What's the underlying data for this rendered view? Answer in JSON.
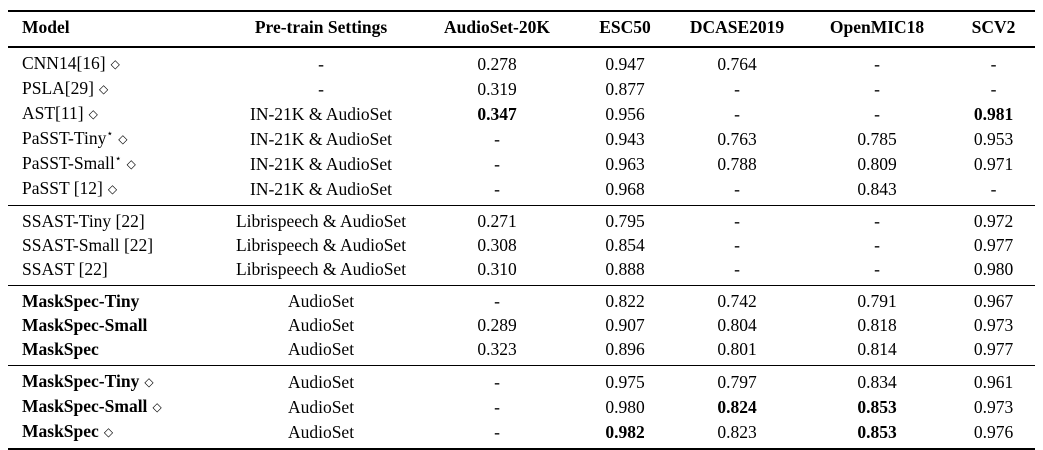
{
  "table": {
    "columns": [
      "Model",
      "Pre-train Settings",
      "AudioSet-20K",
      "ESC50",
      "DCASE2019",
      "OpenMIC18",
      "SCV2"
    ],
    "symbols": {
      "diamond": "◇",
      "star": "⋆"
    },
    "sections": [
      {
        "rows": [
          {
            "model": {
              "text": "CNN14[16]",
              "star": false,
              "diamond": true,
              "bold": false
            },
            "cells": [
              {
                "t": "-",
                "b": false
              },
              {
                "t": "0.278",
                "b": false
              },
              {
                "t": "0.947",
                "b": false
              },
              {
                "t": "0.764",
                "b": false
              },
              {
                "t": "-",
                "b": false
              },
              {
                "t": "-",
                "b": false
              }
            ]
          },
          {
            "model": {
              "text": "PSLA[29]",
              "star": false,
              "diamond": true,
              "bold": false
            },
            "cells": [
              {
                "t": "-",
                "b": false
              },
              {
                "t": "0.319",
                "b": false
              },
              {
                "t": "0.877",
                "b": false
              },
              {
                "t": "-",
                "b": false
              },
              {
                "t": "-",
                "b": false
              },
              {
                "t": "-",
                "b": false
              }
            ]
          },
          {
            "model": {
              "text": "AST[11]",
              "star": false,
              "diamond": true,
              "bold": false
            },
            "cells": [
              {
                "t": "IN-21K & AudioSet",
                "b": false
              },
              {
                "t": "0.347",
                "b": true
              },
              {
                "t": "0.956",
                "b": false
              },
              {
                "t": "-",
                "b": false
              },
              {
                "t": "-",
                "b": false
              },
              {
                "t": "0.981",
                "b": true
              }
            ]
          },
          {
            "model": {
              "text": "PaSST-Tiny",
              "star": true,
              "diamond": true,
              "bold": false
            },
            "cells": [
              {
                "t": "IN-21K & AudioSet",
                "b": false
              },
              {
                "t": "-",
                "b": false
              },
              {
                "t": "0.943",
                "b": false
              },
              {
                "t": "0.763",
                "b": false
              },
              {
                "t": "0.785",
                "b": false
              },
              {
                "t": "0.953",
                "b": false
              }
            ]
          },
          {
            "model": {
              "text": "PaSST-Small",
              "star": true,
              "diamond": true,
              "bold": false
            },
            "cells": [
              {
                "t": "IN-21K & AudioSet",
                "b": false
              },
              {
                "t": "-",
                "b": false
              },
              {
                "t": "0.963",
                "b": false
              },
              {
                "t": "0.788",
                "b": false
              },
              {
                "t": "0.809",
                "b": false
              },
              {
                "t": "0.971",
                "b": false
              }
            ]
          },
          {
            "model": {
              "text": "PaSST [12]",
              "star": false,
              "diamond": true,
              "bold": false
            },
            "cells": [
              {
                "t": "IN-21K & AudioSet",
                "b": false
              },
              {
                "t": "-",
                "b": false
              },
              {
                "t": "0.968",
                "b": false
              },
              {
                "t": "-",
                "b": false
              },
              {
                "t": "0.843",
                "b": false
              },
              {
                "t": "-",
                "b": false
              }
            ]
          }
        ]
      },
      {
        "rows": [
          {
            "model": {
              "text": "SSAST-Tiny [22]",
              "star": false,
              "diamond": false,
              "bold": false
            },
            "cells": [
              {
                "t": "Librispeech & AudioSet",
                "b": false
              },
              {
                "t": "0.271",
                "b": false
              },
              {
                "t": "0.795",
                "b": false
              },
              {
                "t": "-",
                "b": false
              },
              {
                "t": "-",
                "b": false
              },
              {
                "t": "0.972",
                "b": false
              }
            ]
          },
          {
            "model": {
              "text": "SSAST-Small [22]",
              "star": false,
              "diamond": false,
              "bold": false
            },
            "cells": [
              {
                "t": "Librispeech & AudioSet",
                "b": false
              },
              {
                "t": "0.308",
                "b": false
              },
              {
                "t": "0.854",
                "b": false
              },
              {
                "t": "-",
                "b": false
              },
              {
                "t": "-",
                "b": false
              },
              {
                "t": "0.977",
                "b": false
              }
            ]
          },
          {
            "model": {
              "text": "SSAST [22]",
              "star": false,
              "diamond": false,
              "bold": false
            },
            "cells": [
              {
                "t": "Librispeech & AudioSet",
                "b": false
              },
              {
                "t": "0.310",
                "b": false
              },
              {
                "t": "0.888",
                "b": false
              },
              {
                "t": "-",
                "b": false
              },
              {
                "t": "-",
                "b": false
              },
              {
                "t": "0.980",
                "b": false
              }
            ]
          }
        ]
      },
      {
        "rows": [
          {
            "model": {
              "text": "MaskSpec-Tiny",
              "star": false,
              "diamond": false,
              "bold": true
            },
            "cells": [
              {
                "t": "AudioSet",
                "b": false
              },
              {
                "t": "-",
                "b": false
              },
              {
                "t": "0.822",
                "b": false
              },
              {
                "t": "0.742",
                "b": false
              },
              {
                "t": "0.791",
                "b": false
              },
              {
                "t": "0.967",
                "b": false
              }
            ]
          },
          {
            "model": {
              "text": "MaskSpec-Small",
              "star": false,
              "diamond": false,
              "bold": true
            },
            "cells": [
              {
                "t": "AudioSet",
                "b": false
              },
              {
                "t": "0.289",
                "b": false
              },
              {
                "t": "0.907",
                "b": false
              },
              {
                "t": "0.804",
                "b": false
              },
              {
                "t": "0.818",
                "b": false
              },
              {
                "t": "0.973",
                "b": false
              }
            ]
          },
          {
            "model": {
              "text": "MaskSpec",
              "star": false,
              "diamond": false,
              "bold": true
            },
            "cells": [
              {
                "t": "AudioSet",
                "b": false
              },
              {
                "t": "0.323",
                "b": false
              },
              {
                "t": "0.896",
                "b": false
              },
              {
                "t": "0.801",
                "b": false
              },
              {
                "t": "0.814",
                "b": false
              },
              {
                "t": "0.977",
                "b": false
              }
            ]
          }
        ]
      },
      {
        "rows": [
          {
            "model": {
              "text": "MaskSpec-Tiny",
              "star": false,
              "diamond": true,
              "bold": true
            },
            "cells": [
              {
                "t": "AudioSet",
                "b": false
              },
              {
                "t": "-",
                "b": false
              },
              {
                "t": "0.975",
                "b": false
              },
              {
                "t": "0.797",
                "b": false
              },
              {
                "t": "0.834",
                "b": false
              },
              {
                "t": "0.961",
                "b": false
              }
            ]
          },
          {
            "model": {
              "text": "MaskSpec-Small",
              "star": false,
              "diamond": true,
              "bold": true
            },
            "cells": [
              {
                "t": "AudioSet",
                "b": false
              },
              {
                "t": "-",
                "b": false
              },
              {
                "t": "0.980",
                "b": false
              },
              {
                "t": "0.824",
                "b": true
              },
              {
                "t": "0.853",
                "b": true
              },
              {
                "t": "0.973",
                "b": false
              }
            ]
          },
          {
            "model": {
              "text": "MaskSpec",
              "star": false,
              "diamond": true,
              "bold": true
            },
            "cells": [
              {
                "t": "AudioSet",
                "b": false
              },
              {
                "t": "-",
                "b": false
              },
              {
                "t": "0.982",
                "b": true
              },
              {
                "t": "0.823",
                "b": false
              },
              {
                "t": "0.853",
                "b": true
              },
              {
                "t": "0.976",
                "b": false
              }
            ]
          }
        ]
      }
    ]
  }
}
